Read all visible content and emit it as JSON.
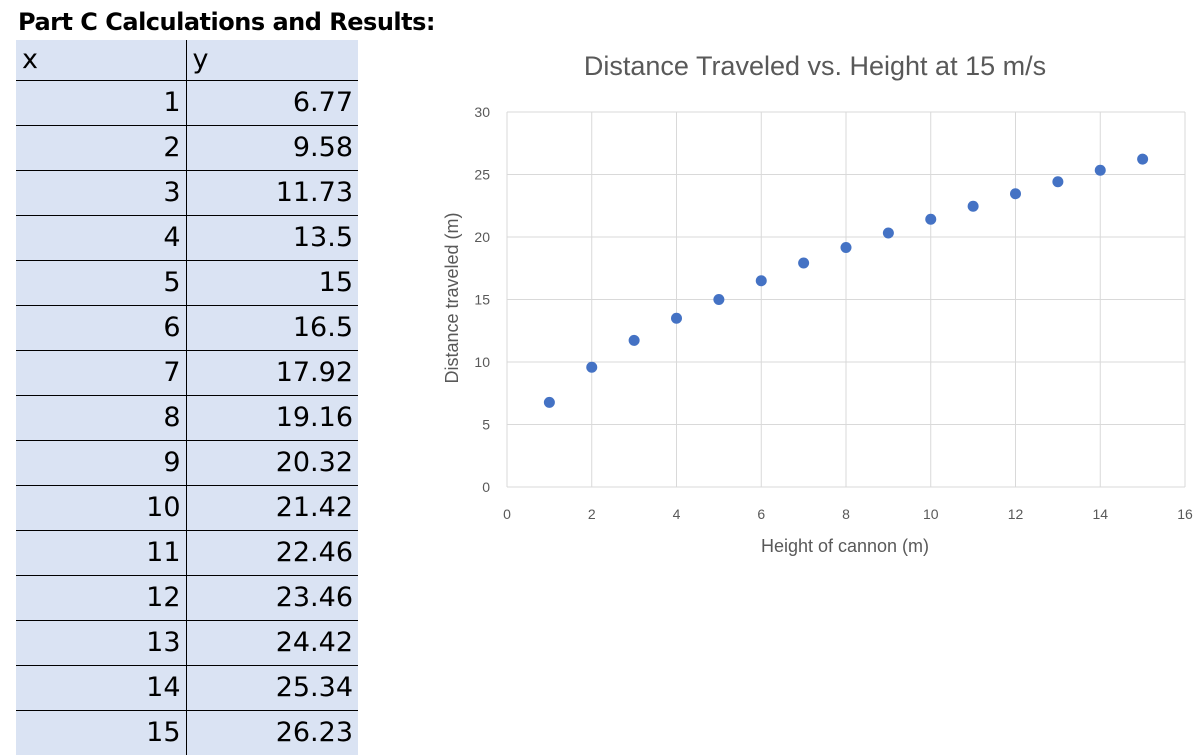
{
  "section": {
    "title": "Part C Calculations and Results:"
  },
  "table": {
    "headers": [
      "x",
      "y"
    ],
    "rows": [
      [
        "1",
        "6.77"
      ],
      [
        "2",
        "9.58"
      ],
      [
        "3",
        "11.73"
      ],
      [
        "4",
        "13.5"
      ],
      [
        "5",
        "15"
      ],
      [
        "6",
        "16.5"
      ],
      [
        "7",
        "17.92"
      ],
      [
        "8",
        "19.16"
      ],
      [
        "9",
        "20.32"
      ],
      [
        "10",
        "21.42"
      ],
      [
        "11",
        "22.46"
      ],
      [
        "12",
        "23.46"
      ],
      [
        "13",
        "24.42"
      ],
      [
        "14",
        "25.34"
      ],
      [
        "15",
        "26.23"
      ]
    ]
  },
  "chart_data": {
    "type": "scatter",
    "title": "Distance Traveled vs. Height at 15 m/s",
    "xlabel": "Height of cannon (m)",
    "ylabel": "Distance traveled (m)",
    "x": [
      1,
      2,
      3,
      4,
      5,
      6,
      7,
      8,
      9,
      10,
      11,
      12,
      13,
      14,
      15
    ],
    "y": [
      6.77,
      9.58,
      11.73,
      13.5,
      15,
      16.5,
      17.92,
      19.16,
      20.32,
      21.42,
      22.46,
      23.46,
      24.42,
      25.34,
      26.23
    ],
    "xlim": [
      0,
      16
    ],
    "ylim": [
      0,
      30
    ],
    "xticks": [
      "0",
      "2",
      "4",
      "6",
      "8",
      "10",
      "12",
      "14",
      "16"
    ],
    "yticks": [
      "0",
      "5",
      "10",
      "15",
      "20",
      "25",
      "30"
    ],
    "grid": true,
    "marker_color": "#4472c4"
  }
}
